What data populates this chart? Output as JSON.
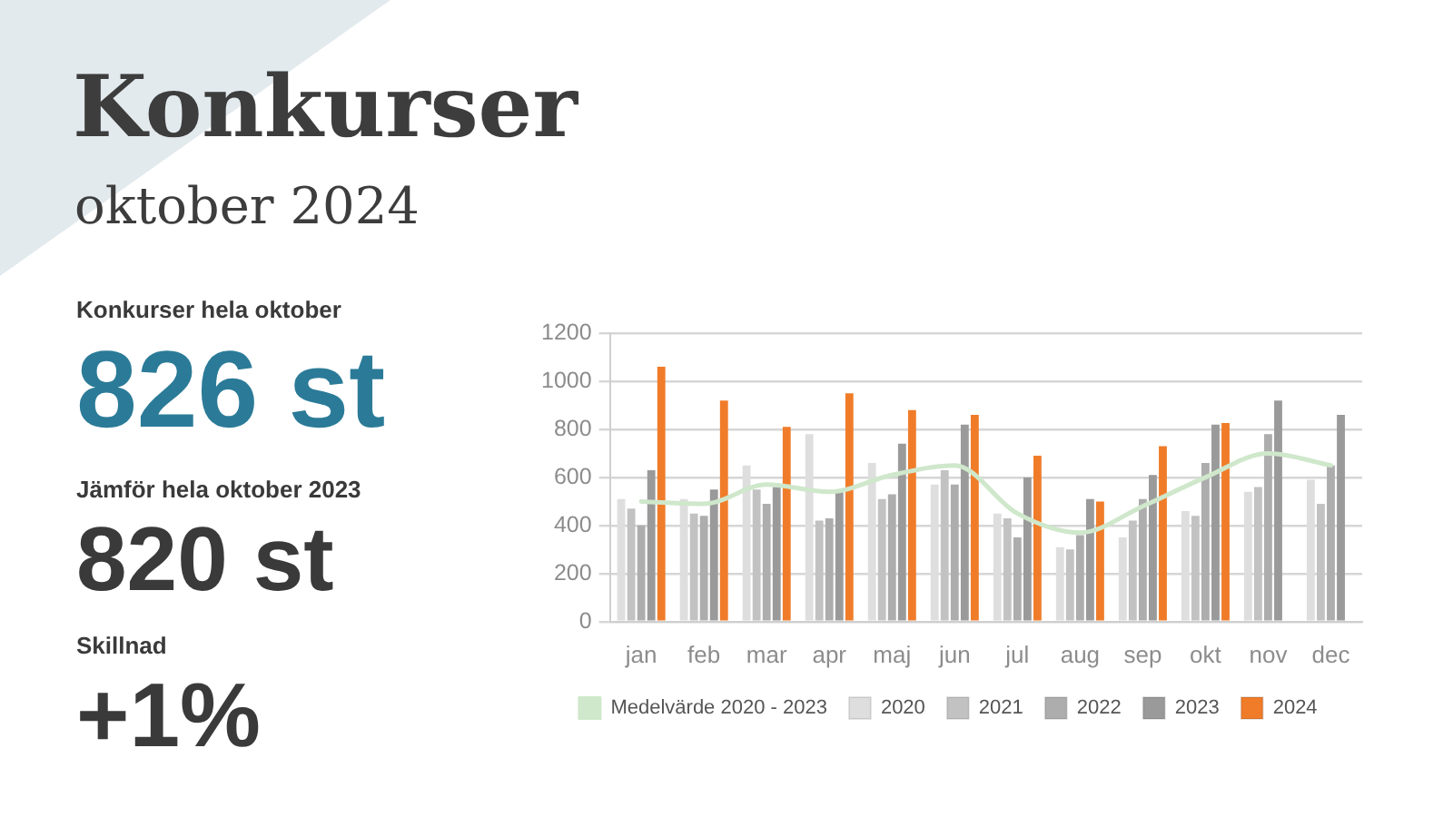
{
  "chart_data": {
    "type": "bar",
    "title": "Konkurser",
    "subtitle": "oktober 2024",
    "annotations": [
      "Konkurser hela oktober",
      "826 st",
      "Jämför hela oktober 2023",
      "820 st",
      "Skillnad",
      "+1%"
    ],
    "categories": [
      "jan",
      "feb",
      "mar",
      "apr",
      "maj",
      "jun",
      "jul",
      "aug",
      "sep",
      "okt",
      "nov",
      "dec"
    ],
    "series": [
      {
        "name": "Medelvärde 2020 - 2023",
        "type": "line",
        "color": "#cfe7cb",
        "values": [
          500,
          490,
          570,
          540,
          610,
          650,
          450,
          370,
          480,
          600,
          700,
          650
        ]
      },
      {
        "name": "2020",
        "color": "#dedede",
        "values": [
          510,
          510,
          650,
          780,
          660,
          570,
          450,
          310,
          350,
          460,
          540,
          590
        ]
      },
      {
        "name": "2021",
        "color": "#c2c2c2",
        "values": [
          470,
          450,
          550,
          420,
          510,
          630,
          430,
          300,
          420,
          440,
          560,
          490
        ]
      },
      {
        "name": "2022",
        "color": "#adadad",
        "values": [
          400,
          440,
          490,
          430,
          530,
          570,
          350,
          360,
          510,
          660,
          780,
          650
        ]
      },
      {
        "name": "2023",
        "color": "#9a9a9a",
        "values": [
          630,
          550,
          560,
          540,
          740,
          820,
          600,
          510,
          610,
          820,
          920,
          860
        ]
      },
      {
        "name": "2024",
        "color": "#f07c2a",
        "values": [
          1060,
          920,
          810,
          950,
          880,
          860,
          690,
          500,
          730,
          826,
          null,
          null
        ]
      }
    ],
    "ylim": [
      0,
      1200
    ],
    "yticks": [
      0,
      200,
      400,
      600,
      800,
      1000,
      1200
    ],
    "grid": "y",
    "legend": "bottom"
  }
}
